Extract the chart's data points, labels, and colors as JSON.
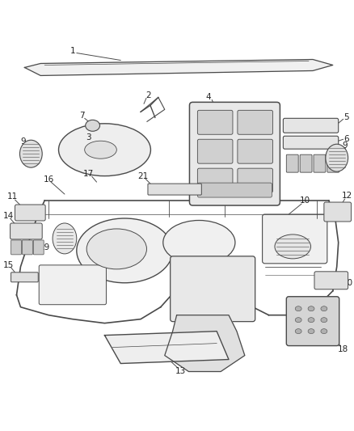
{
  "bg_color": "#ffffff",
  "line_color": "#4a4a4a",
  "text_color": "#222222",
  "fig_width": 4.38,
  "fig_height": 5.33,
  "dpi": 100
}
